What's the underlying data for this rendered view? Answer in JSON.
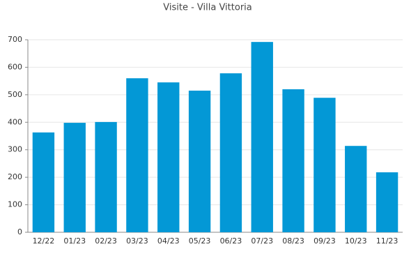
{
  "chart_data": {
    "type": "bar",
    "title": "Visite - Villa Vittoria",
    "categories": [
      "12/22",
      "01/23",
      "02/23",
      "03/23",
      "04/23",
      "05/23",
      "06/23",
      "07/23",
      "08/23",
      "09/23",
      "10/23",
      "11/23"
    ],
    "values": [
      363,
      398,
      401,
      560,
      545,
      515,
      578,
      692,
      520,
      489,
      314,
      218
    ],
    "color": "#0398d6",
    "ylim": [
      0,
      700
    ],
    "yticks": [
      0,
      100,
      200,
      300,
      400,
      500,
      600,
      700
    ],
    "grid": true
  }
}
